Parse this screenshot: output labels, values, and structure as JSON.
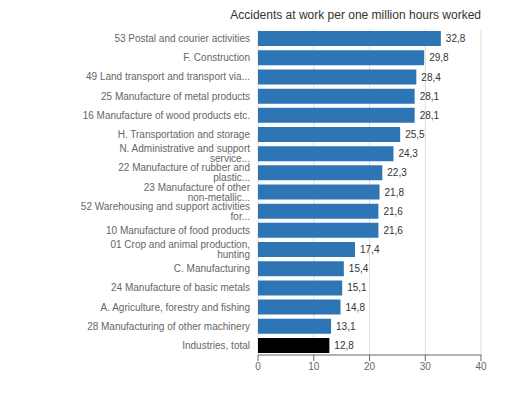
{
  "chart_data": {
    "type": "bar",
    "title": "Accidents at work per one million hours worked",
    "orientation": "horizontal",
    "categories": [
      "Industries, total",
      "28 Manufacturing of other machinery",
      "A. Agriculture, forestry and fishing",
      "24 Manufacture of basic metals",
      "C. Manufacturing",
      "01 Crop and animal production, hunting",
      "10 Manufacture of food products",
      "52 Warehousing and support activities for...",
      "23 Manufacture of other non-metallic...",
      "22 Manufacture of rubber and plastic...",
      "N. Administrative and support service...",
      "H. Transportation and storage",
      "16 Manufacture of wood products etc.",
      "25 Manufacture of metal products",
      "49 Land transport and transport via...",
      "F. Construction",
      "53 Postal and courier activities"
    ],
    "values": [
      12.8,
      13.1,
      14.8,
      15.1,
      15.4,
      17.4,
      21.6,
      21.6,
      21.8,
      22.3,
      24.3,
      25.5,
      28.1,
      28.1,
      28.4,
      29.8,
      32.8
    ],
    "value_labels": [
      "12,8",
      "13,1",
      "14,8",
      "15,1",
      "15,4",
      "17,4",
      "21,6",
      "21,6",
      "21,8",
      "22,3",
      "24,3",
      "25,5",
      "28,1",
      "28,1",
      "28,4",
      "29,8",
      "32,8"
    ],
    "data_labels": true,
    "colors": [
      "#000000",
      "#2E75B6",
      "#2E75B6",
      "#2E75B6",
      "#2E75B6",
      "#2E75B6",
      "#2E75B6",
      "#2E75B6",
      "#2E75B6",
      "#2E75B6",
      "#2E75B6",
      "#2E75B6",
      "#2E75B6",
      "#2E75B6",
      "#2E75B6",
      "#2E75B6",
      "#2E75B6"
    ],
    "xlim": [
      0,
      40
    ],
    "xticks": [
      0,
      10,
      20,
      30,
      40
    ],
    "grid": true
  }
}
